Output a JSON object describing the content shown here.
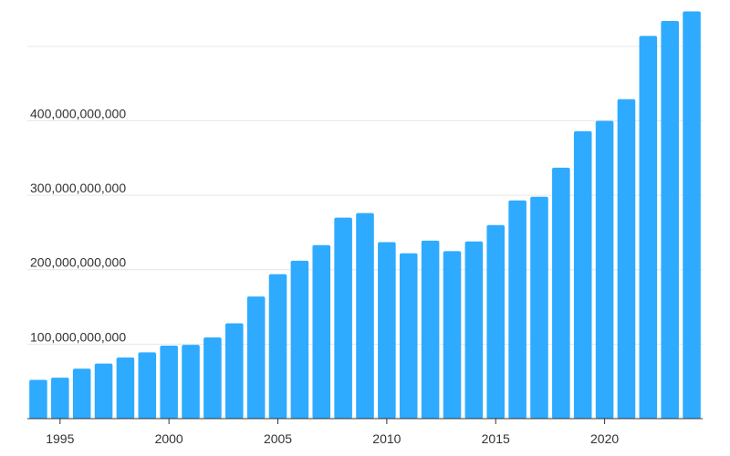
{
  "chart_data": {
    "type": "bar",
    "title": "",
    "xlabel": "",
    "ylabel": "",
    "bar_color": "#2eabff",
    "grid": true,
    "ylim": [
      0,
      550000000000
    ],
    "yticks": [
      100000000000,
      200000000000,
      300000000000,
      400000000000,
      500000000000
    ],
    "ytick_labels": [
      "100,000,000,000",
      "200,000,000,000",
      "300,000,000,000",
      "400,000,000,000",
      ""
    ],
    "xtick_labels": [
      "1995",
      "2000",
      "2005",
      "2010",
      "2015",
      "2020"
    ],
    "categories": [
      1994,
      1995,
      1996,
      1997,
      1998,
      1999,
      2000,
      2001,
      2002,
      2003,
      2004,
      2005,
      2006,
      2007,
      2008,
      2009,
      2010,
      2011,
      2012,
      2013,
      2014,
      2015,
      2016,
      2017,
      2018,
      2019,
      2020,
      2021,
      2022,
      2023,
      2024
    ],
    "values": [
      52000000000,
      55000000000,
      67000000000,
      74000000000,
      82000000000,
      89000000000,
      98000000000,
      99000000000,
      109000000000,
      128000000000,
      164000000000,
      194000000000,
      212000000000,
      233000000000,
      270000000000,
      276000000000,
      237000000000,
      222000000000,
      239000000000,
      225000000000,
      238000000000,
      260000000000,
      293000000000,
      298000000000,
      337000000000,
      386000000000,
      400000000000,
      429000000000,
      514000000000,
      534000000000,
      547000000000
    ]
  }
}
